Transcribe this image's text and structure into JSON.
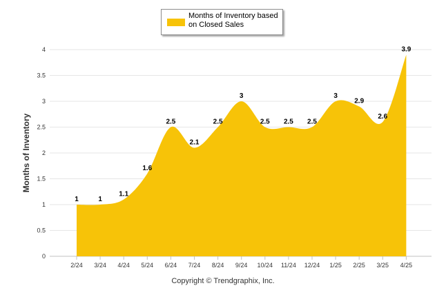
{
  "chart_data": {
    "type": "area",
    "ylabel": "Months of Inventory",
    "ylim": [
      0,
      4
    ],
    "yticks": [
      "0",
      "0.5",
      "1",
      "1.5",
      "2",
      "2.5",
      "3",
      "3.5",
      "4"
    ],
    "categories": [
      "2/24",
      "3/24",
      "4/24",
      "5/24",
      "6/24",
      "7/24",
      "8/24",
      "9/24",
      "10/24",
      "11/24",
      "12/24",
      "1/25",
      "2/25",
      "3/25",
      "4/25"
    ],
    "series": [
      {
        "name": "Months of Inventory based on Closed Sales",
        "values": [
          1,
          1,
          1.1,
          1.6,
          2.5,
          2.1,
          2.5,
          3,
          2.5,
          2.5,
          2.5,
          3,
          2.9,
          2.6,
          3.9
        ],
        "color": "#F7C308"
      }
    ],
    "grid": true,
    "legend_position": "top-center"
  },
  "footer": {
    "copyright": "Copyright © Trendgraphix, Inc."
  }
}
